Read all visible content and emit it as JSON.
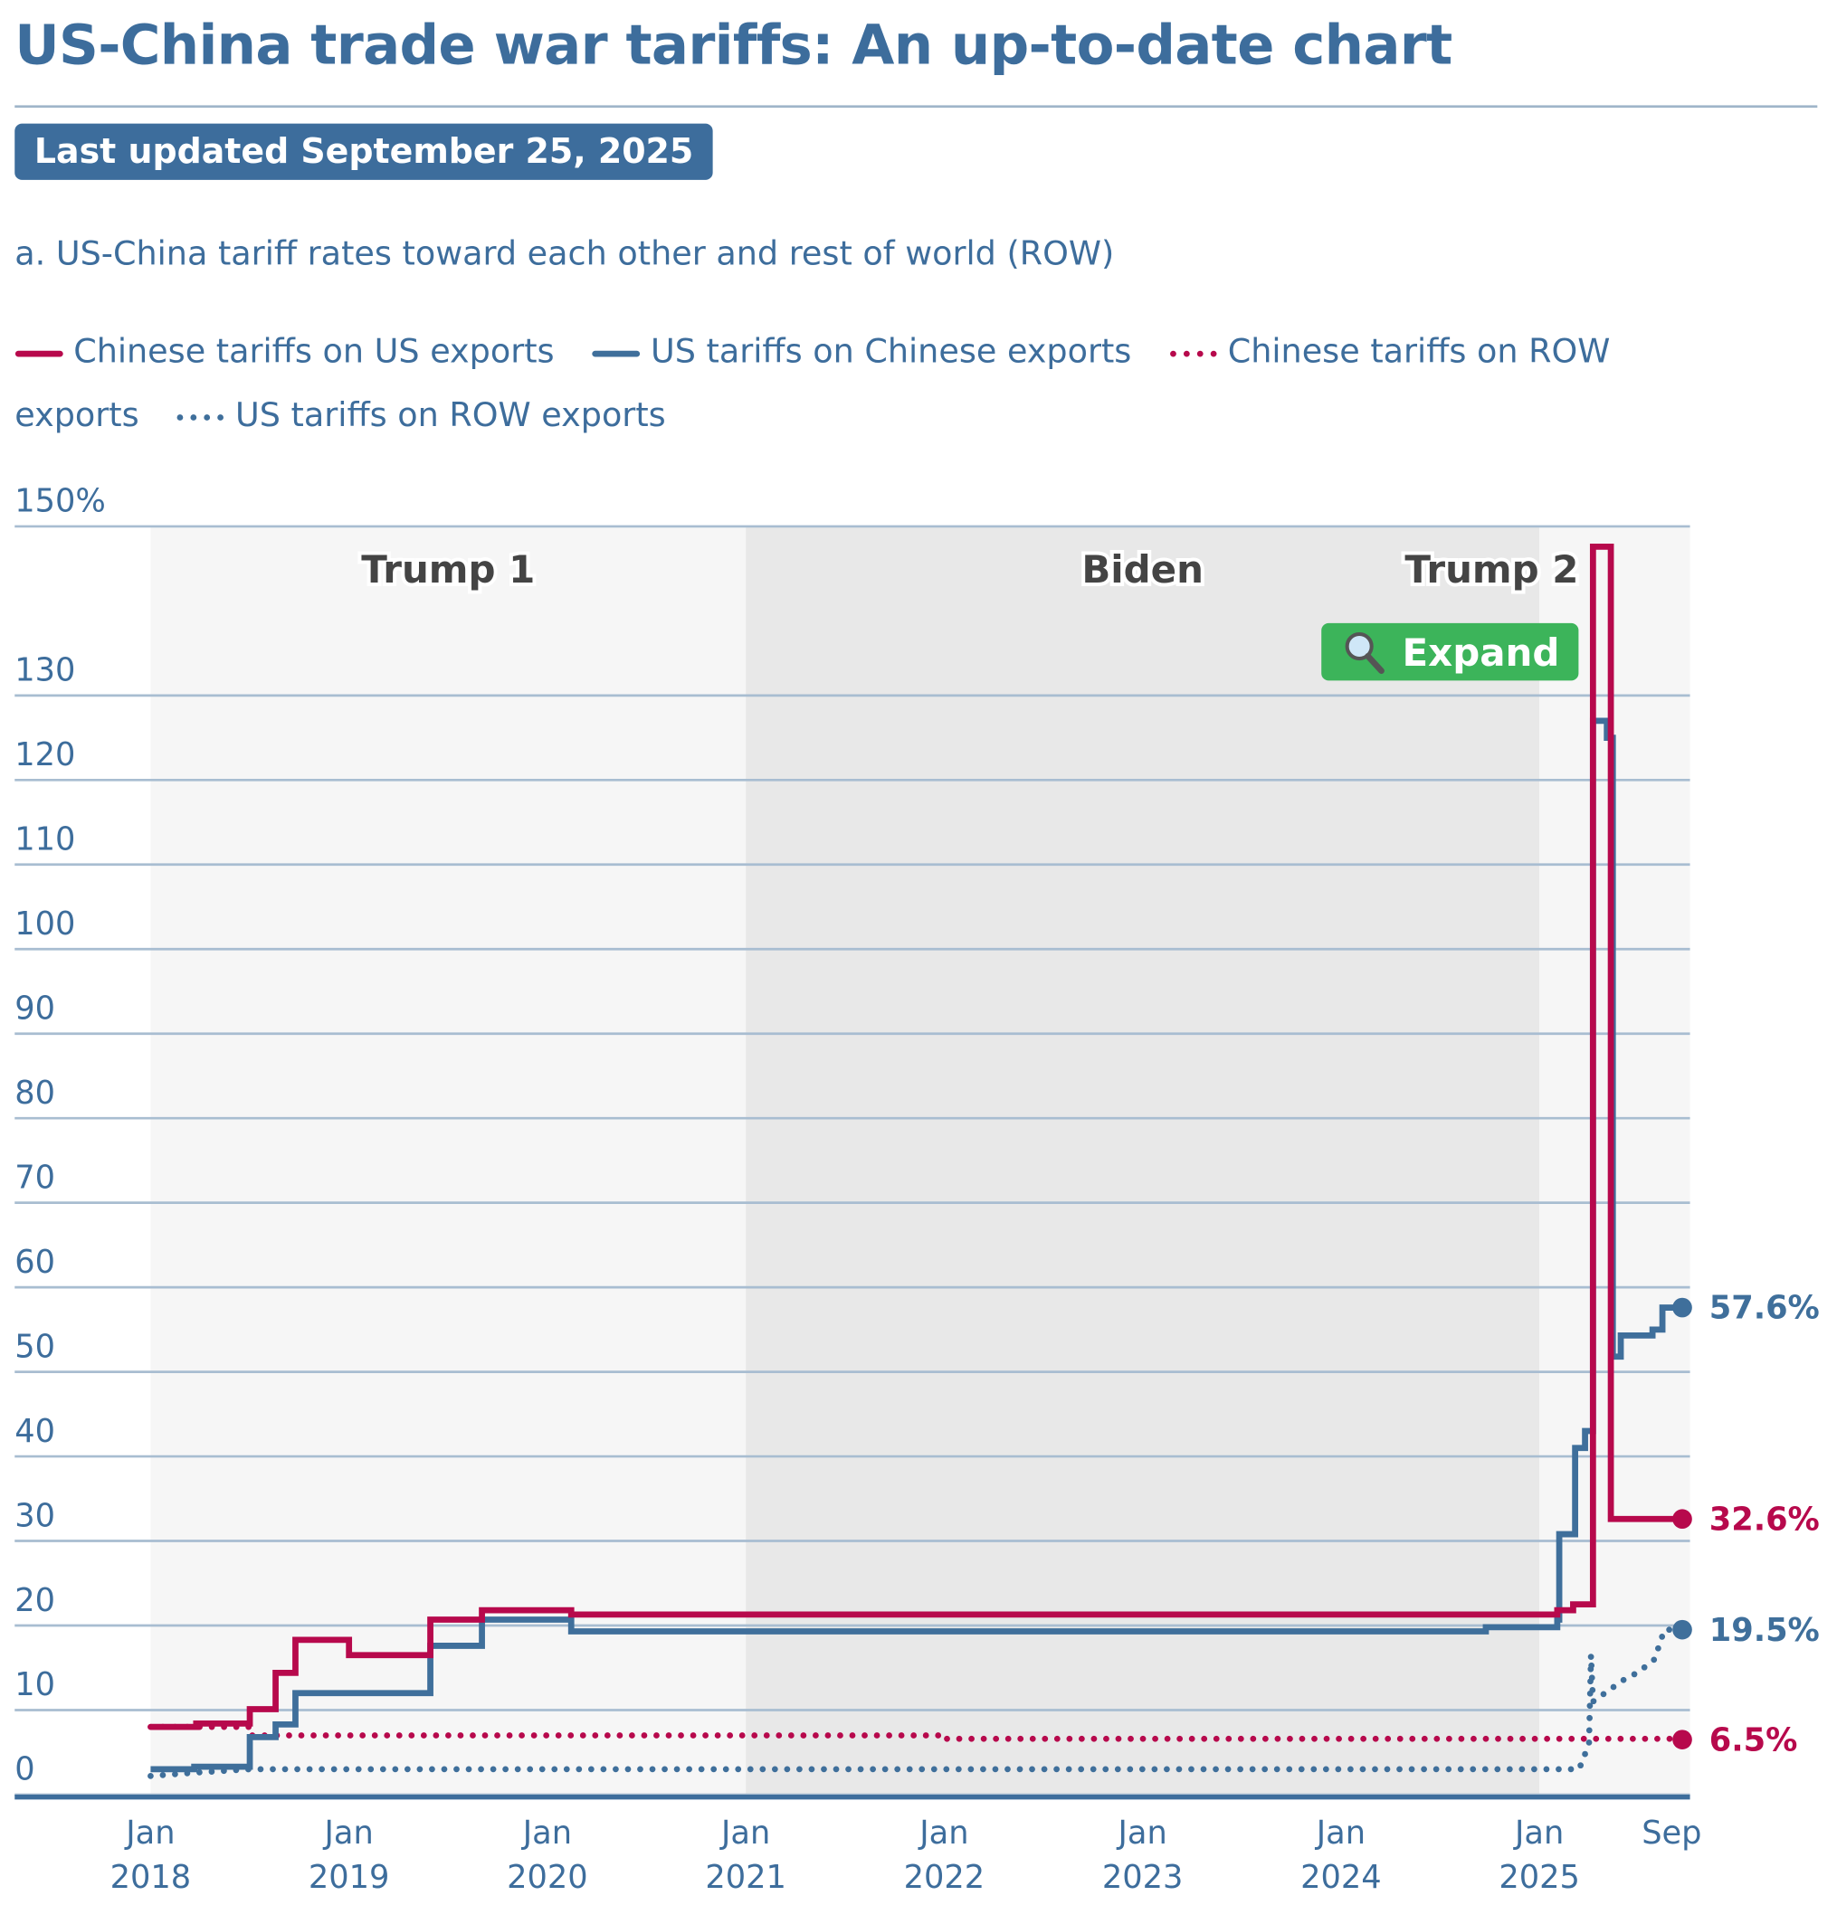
{
  "chart_data": {
    "type": "line",
    "title": "US-China trade war tariffs: An up-to-date chart",
    "updated": "Last updated September 25, 2025",
    "subtitle": "a. US-China tariff rates toward each other and rest of world (ROW)",
    "button": "Expand",
    "xlim": [
      2017.315,
      2025.759
    ],
    "ylim": [
      0,
      150
    ],
    "yticks": [
      0,
      10,
      20,
      30,
      40,
      50,
      60,
      70,
      80,
      90,
      100,
      110,
      120,
      130,
      {
        "value": 150,
        "label": "150%"
      }
    ],
    "xticks": [
      {
        "value": 2018,
        "label": "Jan 2018"
      },
      {
        "value": 2019,
        "label": "Jan 2019"
      },
      {
        "value": 2020,
        "label": "Jan 2020"
      },
      {
        "value": 2021,
        "label": "Jan 2021"
      },
      {
        "value": 2022,
        "label": "Jan 2022"
      },
      {
        "value": 2023,
        "label": "Jan 2023"
      },
      {
        "value": 2024,
        "label": "Jan 2024"
      },
      {
        "value": 2025,
        "label": "Jan 2025"
      },
      {
        "value": 2025.667,
        "label": "Sep"
      }
    ],
    "grid": true,
    "periods": [
      {
        "label": "Trump 1",
        "start": 2018
      },
      {
        "label": "Biden",
        "start": 2021
      },
      {
        "label": "Trump 2",
        "start": 2025
      }
    ],
    "series": [
      {
        "name": "Chinese tariffs on US exports",
        "color": "#b7094c",
        "dotted": false,
        "step": true,
        "end_label": "32.6%",
        "x": [
          2018.0,
          2018.23,
          2018.5,
          2018.63,
          2018.73,
          2019.0,
          2019.41,
          2019.67,
          2020.12,
          2025.09,
          2025.17,
          2025.27,
          2025.36,
          2025.72
        ],
        "values": [
          8.0,
          8.4,
          10.1,
          14.4,
          18.3,
          16.5,
          20.7,
          21.8,
          21.3,
          21.8,
          22.5,
          147.6,
          32.6,
          32.6
        ]
      },
      {
        "name": "US tariffs on Chinese exports",
        "color": "#3f6f9b",
        "dotted": false,
        "step": true,
        "end_label": "57.6%",
        "x": [
          2018.0,
          2018.22,
          2018.5,
          2018.63,
          2018.73,
          2019.41,
          2019.67,
          2020.12,
          2024.73,
          2025.09,
          2025.1,
          2025.18,
          2025.23,
          2025.27,
          2025.34,
          2025.37,
          2025.41,
          2025.57,
          2025.62,
          2025.72
        ],
        "values": [
          3.0,
          3.3,
          6.8,
          8.3,
          12.0,
          17.6,
          20.7,
          19.3,
          19.8,
          20.7,
          30.8,
          41.0,
          43.0,
          127.0,
          125.0,
          51.8,
          54.3,
          55.0,
          57.6,
          57.6
        ]
      },
      {
        "name": "Chinese tariffs on ROW exports",
        "color": "#b7094c",
        "dotted": true,
        "step": true,
        "end_label": "6.5%",
        "x": [
          2018.0,
          2018.5,
          2022.0,
          2025.72
        ],
        "values": [
          8.0,
          7.0,
          6.6,
          6.5
        ]
      },
      {
        "name": "US tariffs on ROW exports",
        "color": "#3f6f9b",
        "dotted": true,
        "step": false,
        "end_label": "19.5%",
        "x": [
          2018.0,
          2018.23,
          2018.5,
          2025.2,
          2025.25,
          2025.26,
          2025.27,
          2025.33,
          2025.42,
          2025.5,
          2025.58,
          2025.63,
          2025.72
        ],
        "values": [
          2.2,
          2.6,
          3.0,
          3.0,
          6.0,
          16.5,
          11.0,
          12.0,
          13.5,
          14.5,
          16.0,
          19.5,
          19.5
        ]
      }
    ]
  }
}
